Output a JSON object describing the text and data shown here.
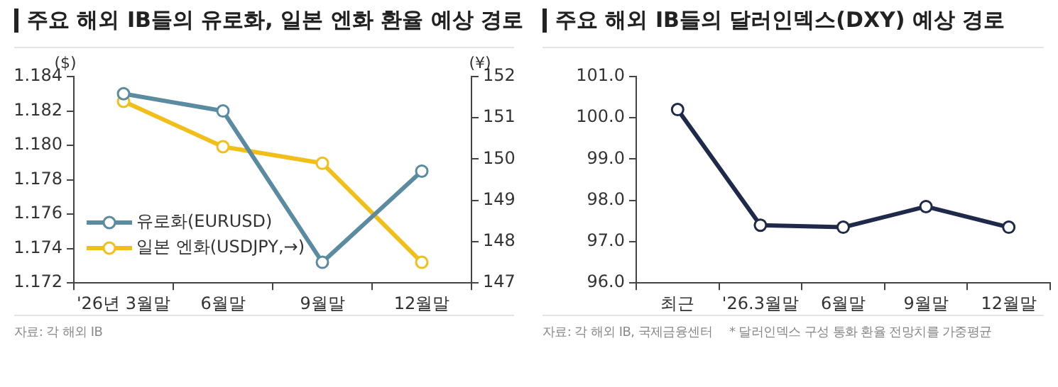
{
  "chart_data": [
    {
      "type": "line",
      "title": "주요 해외 IB들의 유로화, 일본 엔화 환율 예상 경로",
      "ylabel": "($)",
      "y2label": "(¥)",
      "categories": [
        "'26년 3월말",
        "6월말",
        "9월말",
        "12월말"
      ],
      "series": [
        {
          "name": "유로화(EURUSD)",
          "color": "#5b8ba0",
          "values": [
            1.183,
            1.182,
            1.1732,
            1.1785
          ]
        },
        {
          "name": "일본 엔화(USDJPY,→)",
          "color": "#f2bf1a",
          "values": [
            151.4,
            150.3,
            149.9,
            147.5
          ],
          "axis": "y2"
        }
      ],
      "ylim": [
        1.172,
        1.184
      ],
      "yticks": [
        {
          "value": 1.172,
          "label": "1.172"
        },
        {
          "value": 1.174,
          "label": "1.174"
        },
        {
          "value": 1.176,
          "label": "1.176"
        },
        {
          "value": 1.178,
          "label": "1.178"
        },
        {
          "value": 1.18,
          "label": "1.180"
        },
        {
          "value": 1.182,
          "label": "1.182"
        },
        {
          "value": 1.184,
          "label": "1.184"
        }
      ],
      "y2lim": [
        147,
        152
      ],
      "y2ticks": [
        147,
        148,
        149,
        150,
        151,
        152
      ],
      "marker": "circle",
      "legend": "bottom left",
      "grid": false,
      "annotations": [
        "자료: 각 해외 IB"
      ]
    },
    {
      "type": "line",
      "title": "주요 해외 IB들의 달러인덱스(DXY) 예상 경로",
      "categories": [
        "최근",
        "'26.3월말",
        "6월말",
        "9월말",
        "12월말"
      ],
      "series": [
        {
          "color": "#1f2a4a",
          "values": [
            100.2,
            97.4,
            97.35,
            97.85,
            97.35
          ]
        }
      ],
      "ylim": [
        96,
        101
      ],
      "yticks": [
        {
          "value": 96,
          "label": "96.0"
        },
        {
          "value": 97,
          "label": "97.0"
        },
        {
          "value": 98,
          "label": "98.0"
        },
        {
          "value": 99,
          "label": "99.0"
        },
        {
          "value": 100,
          "label": "100.0"
        },
        {
          "value": 101,
          "label": "101.0"
        }
      ],
      "marker": "circle",
      "grid": false,
      "annotations": [
        "자료: 각 해외 IB, 국제금융센터",
        "* 달러인덱스 구성 통화 환율 전망치를 가중평균"
      ]
    }
  ]
}
